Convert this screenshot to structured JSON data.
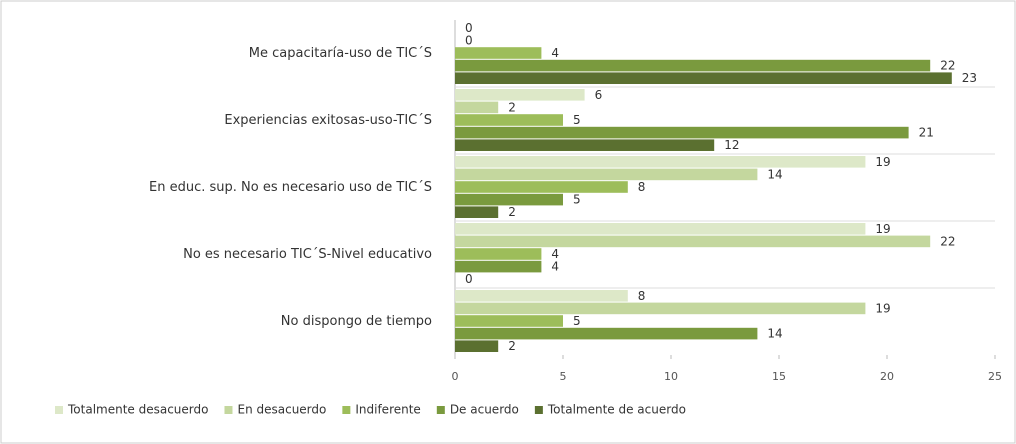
{
  "chart_data": {
    "type": "bar",
    "orientation": "horizontal",
    "categories": [
      "Me capacitaría-uso de TIC´S",
      "Experiencias exitosas-uso-TIC´S",
      "En educ. sup. No es necesario uso de TIC´S",
      "No es necesario TIC´S-Nivel educativo",
      "No dispongo de tiempo"
    ],
    "series": [
      {
        "name": "Totalmente desacuerdo",
        "color": "#dde8c8",
        "values": [
          0,
          6,
          19,
          19,
          8
        ]
      },
      {
        "name": "En desacuerdo",
        "color": "#c4d79e",
        "values": [
          0,
          2,
          14,
          22,
          19
        ]
      },
      {
        "name": "Indiferente",
        "color": "#9dbd5a",
        "values": [
          4,
          5,
          8,
          4,
          5
        ]
      },
      {
        "name": "De acuerdo",
        "color": "#7a9a3e",
        "values": [
          22,
          21,
          5,
          4,
          14
        ]
      },
      {
        "name": "Totalmente de acuerdo",
        "color": "#5b7030",
        "values": [
          23,
          12,
          2,
          0,
          2
        ]
      }
    ],
    "xlim": [
      0,
      25
    ],
    "xticks": [
      0,
      5,
      10,
      15,
      20,
      25
    ],
    "legend": "bottom"
  }
}
